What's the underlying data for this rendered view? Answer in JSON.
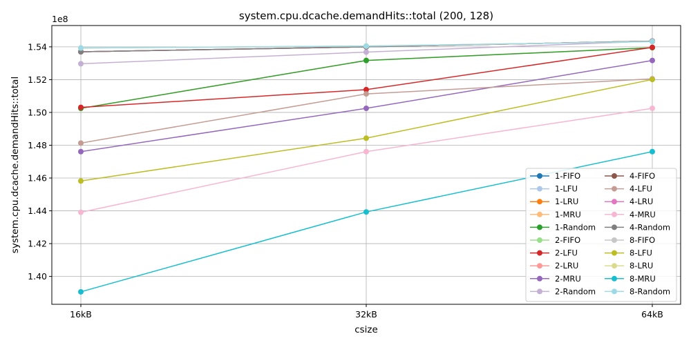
{
  "chart_data": {
    "type": "line",
    "title": "system.cpu.dcache.demandHits::total (200, 128)",
    "xlabel": "csize",
    "ylabel": "system.cpu.dcache.demandHits::total",
    "y_offset_label": "1e8",
    "categories": [
      "16kB",
      "32kB",
      "64kB"
    ],
    "y_unit_scale": 100000000,
    "ylim": [
      1.383,
      1.553
    ],
    "yticks": [
      1.4,
      1.42,
      1.44,
      1.46,
      1.48,
      1.5,
      1.52,
      1.54
    ],
    "ytick_labels": [
      "1.40",
      "1.42",
      "1.44",
      "1.46",
      "1.48",
      "1.50",
      "1.52",
      "1.54"
    ],
    "grid": true,
    "legend_position": "lower-right",
    "legend_columns": 2,
    "series": [
      {
        "name": "1-FIFO",
        "color": "#1f77b4",
        "values": [
          1.537,
          1.54,
          1.5435
        ]
      },
      {
        "name": "1-LFU",
        "color": "#aec7e8",
        "values": [
          1.537,
          1.54,
          1.5435
        ]
      },
      {
        "name": "1-LRU",
        "color": "#ff7f0e",
        "values": [
          1.537,
          1.54,
          1.5435
        ]
      },
      {
        "name": "1-MRU",
        "color": "#ffbb78",
        "values": [
          1.5025,
          1.5317,
          1.5395
        ]
      },
      {
        "name": "1-Random",
        "color": "#2ca02c",
        "values": [
          1.5025,
          1.5317,
          1.5395
        ]
      },
      {
        "name": "2-FIFO",
        "color": "#98df8a",
        "values": [
          1.537,
          1.54,
          1.5435
        ]
      },
      {
        "name": "2-LFU",
        "color": "#d62728",
        "values": [
          1.5031,
          1.5139,
          1.5397
        ]
      },
      {
        "name": "2-LRU",
        "color": "#ff9896",
        "values": [
          1.537,
          1.54,
          1.5435
        ]
      },
      {
        "name": "2-MRU",
        "color": "#9467bd",
        "values": [
          1.4761,
          1.5025,
          1.5317
        ]
      },
      {
        "name": "2-Random",
        "color": "#c5b0d5",
        "values": [
          1.5297,
          1.5368,
          1.5435
        ]
      },
      {
        "name": "4-FIFO",
        "color": "#8c564b",
        "values": [
          1.537,
          1.54,
          1.5435
        ]
      },
      {
        "name": "4-LFU",
        "color": "#c49c94",
        "values": [
          1.4813,
          1.5113,
          1.5205
        ]
      },
      {
        "name": "4-LRU",
        "color": "#e377c2",
        "values": [
          1.537,
          1.54,
          1.5435
        ]
      },
      {
        "name": "4-MRU",
        "color": "#f7b6d2",
        "values": [
          1.4391,
          1.4761,
          1.5025
        ]
      },
      {
        "name": "4-Random",
        "color": "#7f7f7f",
        "values": [
          1.537,
          1.54,
          1.5435
        ]
      },
      {
        "name": "8-FIFO",
        "color": "#c7c7c7",
        "values": [
          1.5393,
          1.5405,
          1.5432
        ]
      },
      {
        "name": "8-LFU",
        "color": "#bcbd22",
        "values": [
          1.4582,
          1.4843,
          1.5201
        ]
      },
      {
        "name": "8-LRU",
        "color": "#dbdb8d",
        "values": [
          1.5393,
          1.5405,
          1.5432
        ]
      },
      {
        "name": "8-MRU",
        "color": "#17becf",
        "values": [
          1.3906,
          1.4393,
          1.4761
        ]
      },
      {
        "name": "8-Random",
        "color": "#9edae5",
        "values": [
          1.5393,
          1.5405,
          1.5432
        ]
      }
    ]
  }
}
